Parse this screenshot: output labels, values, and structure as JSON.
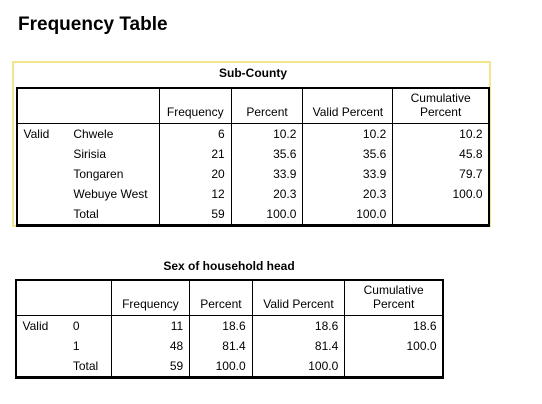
{
  "page_title": "Frequency Table",
  "subcounty": {
    "title": "Sub-County",
    "headers": [
      "Frequency",
      "Percent",
      "Valid Percent",
      "Cumulative Percent"
    ],
    "cumulative_header_line1": "Cumulative",
    "cumulative_header_line2": "Percent",
    "group_label": "Valid",
    "rows": [
      {
        "label": "Chwele",
        "frequency": "6",
        "percent": "10.2",
        "valid_percent": "10.2",
        "cumulative_percent": "10.2"
      },
      {
        "label": "Sirisia",
        "frequency": "21",
        "percent": "35.6",
        "valid_percent": "35.6",
        "cumulative_percent": "45.8"
      },
      {
        "label": "Tongaren",
        "frequency": "20",
        "percent": "33.9",
        "valid_percent": "33.9",
        "cumulative_percent": "79.7"
      },
      {
        "label": "Webuye West",
        "frequency": "12",
        "percent": "20.3",
        "valid_percent": "20.3",
        "cumulative_percent": "100.0"
      },
      {
        "label": "Total",
        "frequency": "59",
        "percent": "100.0",
        "valid_percent": "100.0",
        "cumulative_percent": ""
      }
    ]
  },
  "sex": {
    "title": "Sex of household head",
    "headers": [
      "Frequency",
      "Percent",
      "Valid Percent",
      "Cumulative Percent"
    ],
    "cumulative_header_line1": "Cumulative",
    "cumulative_header_line2": "Percent",
    "group_label": "Valid",
    "rows": [
      {
        "label": "0",
        "frequency": "11",
        "percent": "18.6",
        "valid_percent": "18.6",
        "cumulative_percent": "18.6"
      },
      {
        "label": "1",
        "frequency": "48",
        "percent": "81.4",
        "valid_percent": "81.4",
        "cumulative_percent": "100.0"
      },
      {
        "label": "Total",
        "frequency": "59",
        "percent": "100.0",
        "valid_percent": "100.0",
        "cumulative_percent": ""
      }
    ]
  },
  "colors": {
    "selection_border": "#f3e58a"
  }
}
